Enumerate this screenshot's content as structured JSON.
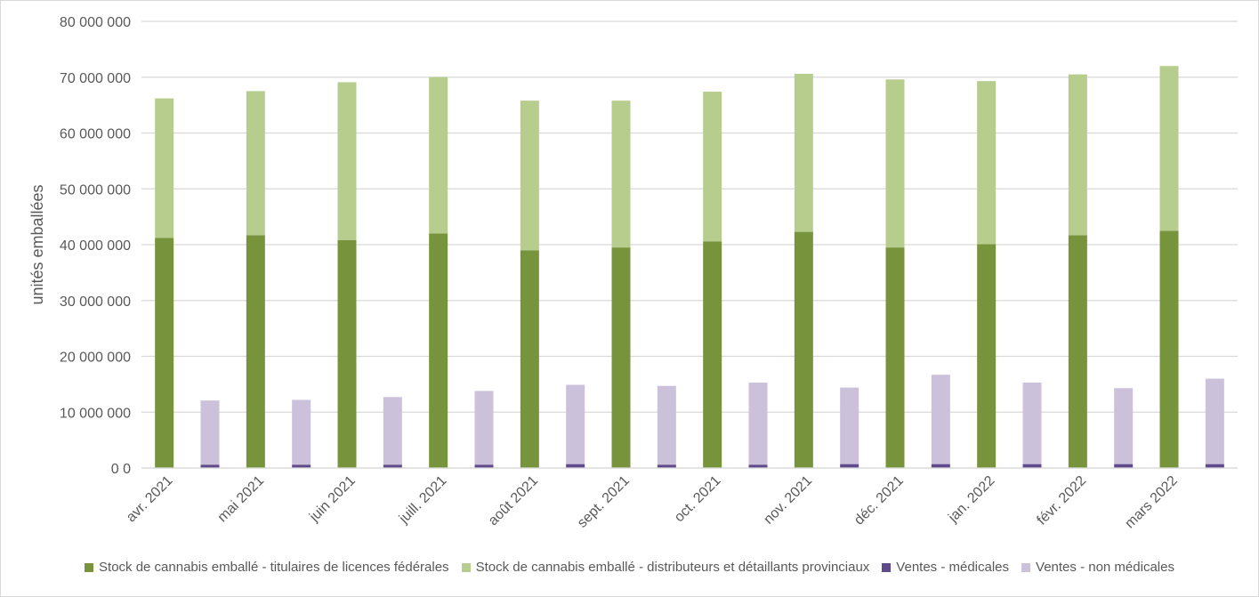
{
  "chart_data": {
    "type": "bar",
    "title": "",
    "xlabel": "",
    "ylabel": "unités emballées",
    "ylim": [
      0,
      80000000
    ],
    "y_ticks": [
      0,
      10000000,
      20000000,
      30000000,
      40000000,
      50000000,
      60000000,
      70000000,
      80000000
    ],
    "y_tick_labels": [
      "0 0",
      "10 000 000",
      "20 000 000",
      "30 000 000",
      "40 000 000",
      "50 000 000",
      "60 000 000",
      "70 000 000",
      "80 000 000"
    ],
    "grid": true,
    "legend_position": "bottom",
    "categories": [
      "avr. 2021",
      "mai 2021",
      "juin 2021",
      "juill. 2021",
      "août 2021",
      "sept. 2021",
      "oct. 2021",
      "nov. 2021",
      "déc. 2021",
      "jan. 2022",
      "févr. 2022",
      "mars 2022"
    ],
    "stacks": [
      {
        "stack": "stock",
        "series": [
          {
            "name": "Stock de cannabis emballé - titulaires de licences fédérales",
            "color": "#77933c",
            "values": [
              41200000,
              41700000,
              40800000,
              42000000,
              39000000,
              39500000,
              40600000,
              42300000,
              39500000,
              40100000,
              41700000,
              42500000
            ]
          },
          {
            "name": "Stock de cannabis emballé - distributeurs et détaillants provinciaux",
            "color": "#b7cd8e",
            "values": [
              25000000,
              25800000,
              28300000,
              28000000,
              26800000,
              26300000,
              26800000,
              28300000,
              30100000,
              29200000,
              28800000,
              29500000
            ]
          }
        ]
      },
      {
        "stack": "ventes",
        "series": [
          {
            "name": "Ventes - médicales",
            "color": "#5f4b8b",
            "values": [
              600000,
              600000,
              600000,
              600000,
              700000,
              600000,
              600000,
              700000,
              700000,
              700000,
              700000,
              700000
            ]
          },
          {
            "name": "Ventes - non médicales",
            "color": "#ccc1da",
            "values": [
              11500000,
              11600000,
              12100000,
              13200000,
              14200000,
              14100000,
              14700000,
              13700000,
              16000000,
              14600000,
              13600000,
              15300000
            ]
          }
        ]
      }
    ]
  }
}
